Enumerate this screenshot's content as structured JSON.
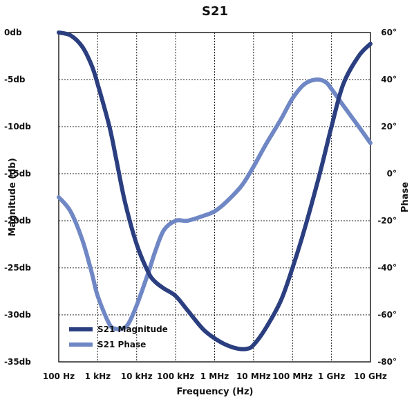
{
  "chart_data": {
    "type": "line",
    "title": "S21",
    "xlabel": "Frequency (Hz)",
    "ylabel": "Magnitude (db)",
    "y2label": "Phase",
    "x_scale": "log",
    "xlim": [
      100,
      10000000000
    ],
    "ylim": [
      -35,
      0
    ],
    "y2lim": [
      -80,
      60
    ],
    "x_ticks": [
      {
        "value": 100,
        "label": "100 Hz"
      },
      {
        "value": 1000,
        "label": "1 kHz"
      },
      {
        "value": 10000,
        "label": "10 kHz"
      },
      {
        "value": 100000,
        "label": "100 kHz"
      },
      {
        "value": 1000000,
        "label": "1 MHz"
      },
      {
        "value": 10000000,
        "label": "10 MHz"
      },
      {
        "value": 100000000,
        "label": "100 MHz"
      },
      {
        "value": 1000000000,
        "label": "1 GHz"
      },
      {
        "value": 10000000000,
        "label": "10 GHz"
      }
    ],
    "y_ticks": [
      {
        "value": 0,
        "label": "0db"
      },
      {
        "value": -5,
        "label": "-5db"
      },
      {
        "value": -10,
        "label": "-10db"
      },
      {
        "value": -15,
        "label": "-15db"
      },
      {
        "value": -20,
        "label": "-20db"
      },
      {
        "value": -25,
        "label": "-25db"
      },
      {
        "value": -30,
        "label": "-30db"
      },
      {
        "value": -35,
        "label": "-35db"
      }
    ],
    "y2_ticks": [
      {
        "value": 60,
        "label": "60°"
      },
      {
        "value": 40,
        "label": "40°"
      },
      {
        "value": 20,
        "label": "20°"
      },
      {
        "value": 0,
        "label": "0°"
      },
      {
        "value": -20,
        "label": "-20°"
      },
      {
        "value": -40,
        "label": "-40°"
      },
      {
        "value": -60,
        "label": "-60°"
      },
      {
        "value": -80,
        "label": "-80°"
      }
    ],
    "grid": true,
    "legend_position": "bottom-left",
    "series": [
      {
        "name": "S21 Magnitude",
        "axis": "left",
        "color": "#2b3f80",
        "x": [
          100,
          200,
          400,
          700,
          1000,
          2000,
          3000,
          5000,
          10000,
          20000,
          30000,
          50000,
          100000,
          200000,
          500000,
          1000000,
          2000000,
          4000000,
          7000000,
          10000000,
          20000000,
          50000000,
          100000000,
          200000000,
          500000000,
          1000000000,
          2000000000,
          5000000000,
          10000000000
        ],
        "y": [
          0,
          -0.3,
          -1.5,
          -3.5,
          -5.5,
          -10,
          -13.5,
          -18,
          -22.5,
          -25.5,
          -26.5,
          -27.2,
          -28,
          -29.5,
          -31.5,
          -32.5,
          -33.2,
          -33.6,
          -33.6,
          -33.2,
          -31.5,
          -28.5,
          -25,
          -21,
          -15,
          -10,
          -5.5,
          -2.5,
          -1.2
        ]
      },
      {
        "name": "S21 Phase",
        "axis": "right",
        "color": "#6f87c4",
        "x": [
          100,
          200,
          400,
          700,
          1000,
          2000,
          3000,
          4000,
          6000,
          10000,
          20000,
          30000,
          50000,
          100000,
          200000,
          500000,
          1000000,
          2000000,
          5000000,
          10000000,
          20000000,
          50000000,
          100000000,
          200000000,
          400000000,
          700000000,
          1000000000,
          2000000000,
          5000000000,
          10000000000
        ],
        "y": [
          -10,
          -16,
          -28,
          -42,
          -52,
          -64,
          -66,
          -66,
          -64,
          -56,
          -42,
          -33,
          -24,
          -20,
          -20,
          -18,
          -16,
          -12,
          -5,
          3,
          12,
          23,
          32,
          38,
          40,
          39,
          36,
          29,
          20,
          13
        ]
      }
    ]
  }
}
